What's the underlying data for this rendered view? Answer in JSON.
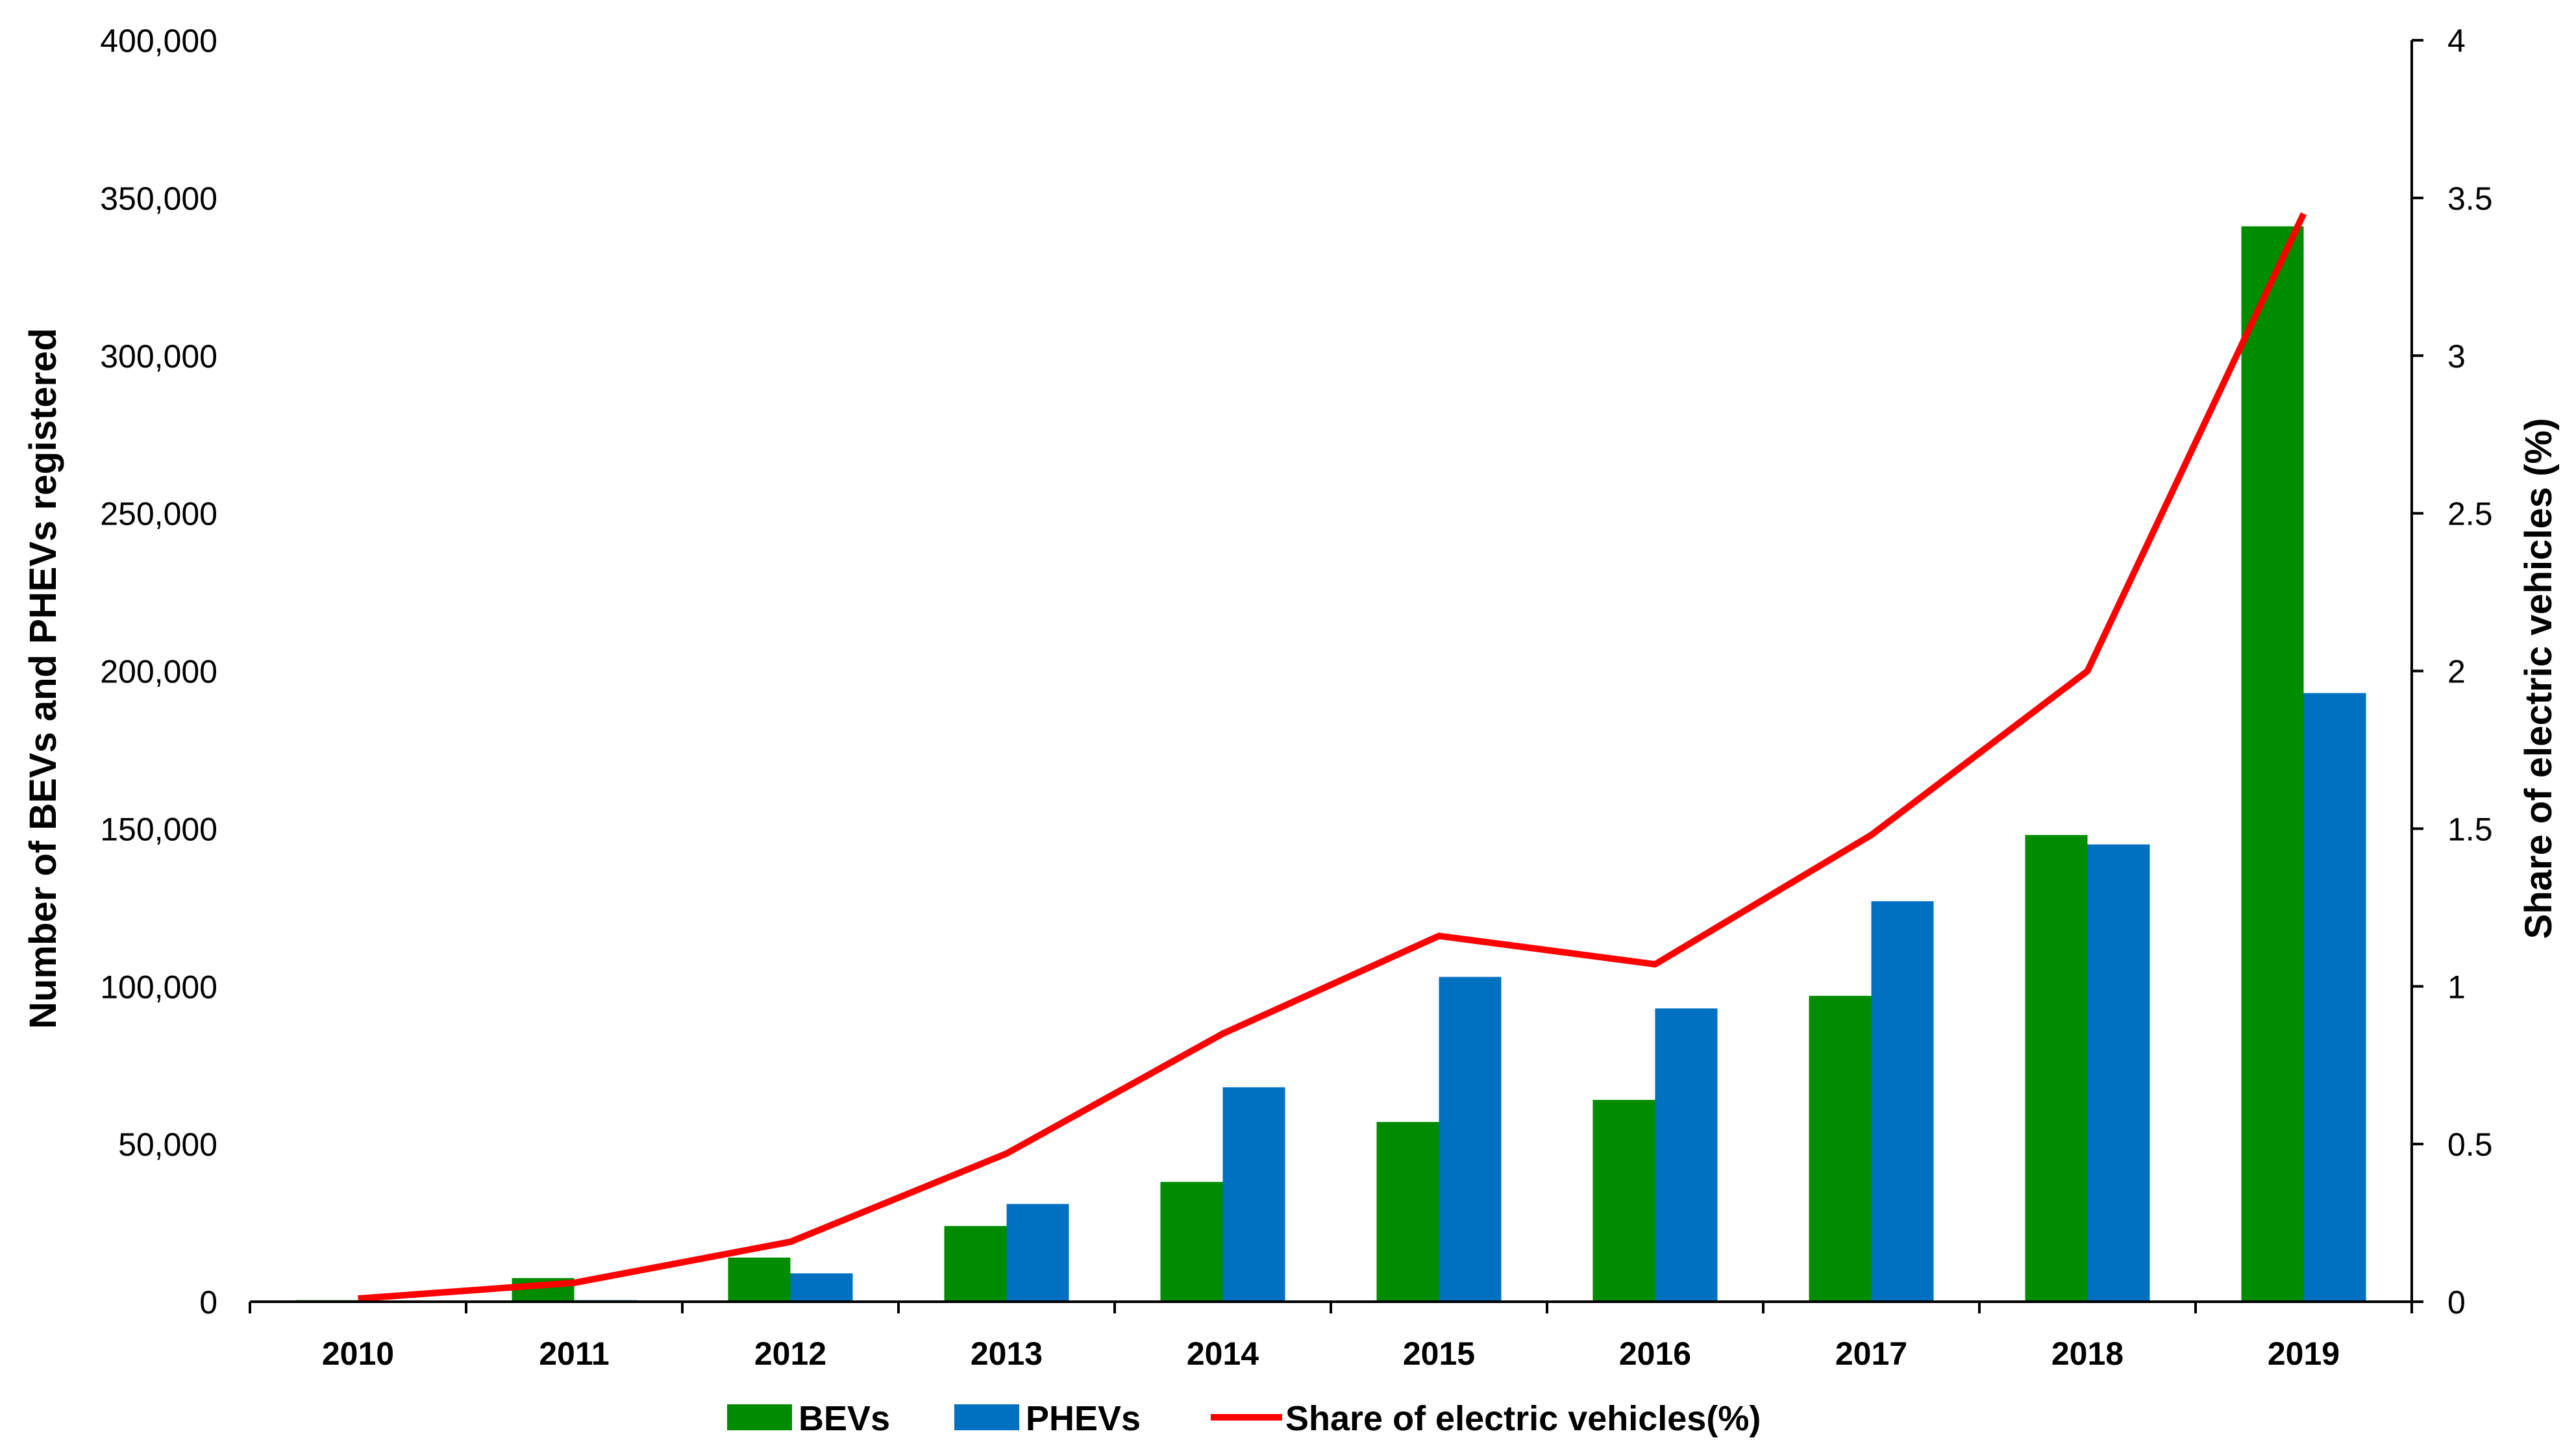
{
  "chart_data": {
    "type": "bar",
    "categories": [
      "2010",
      "2011",
      "2012",
      "2013",
      "2014",
      "2015",
      "2016",
      "2017",
      "2018",
      "2019"
    ],
    "series": [
      {
        "name": "BEVs",
        "type": "bar",
        "axis": "left",
        "color": "#008C00",
        "values": [
          500,
          7500,
          14000,
          24000,
          38000,
          57000,
          64000,
          97000,
          148000,
          341000
        ]
      },
      {
        "name": "PHEVs",
        "type": "bar",
        "axis": "left",
        "color": "#0070C0",
        "values": [
          0,
          500,
          9000,
          31000,
          68000,
          103000,
          93000,
          127000,
          145000,
          193000
        ]
      },
      {
        "name": "Share of electric vehicles(%)",
        "type": "line",
        "axis": "right",
        "color": "#FF0000",
        "values": [
          0.01,
          0.06,
          0.19,
          0.47,
          0.85,
          1.16,
          1.07,
          1.48,
          2.0,
          3.45
        ]
      }
    ],
    "ylabel": "Number of BEVs and PHEVs registered",
    "y2label": "Share of electric vehicles (%)",
    "ylim": [
      0,
      400000
    ],
    "y2lim": [
      0,
      4
    ],
    "yticks": [
      "0",
      "50,000",
      "100,000",
      "150,000",
      "200,000",
      "250,000",
      "300,000",
      "350,000",
      "400,000"
    ],
    "y2ticks": [
      "0",
      "0.5",
      "1",
      "1.5",
      "2",
      "2.5",
      "3",
      "3.5",
      "4"
    ],
    "grid": false,
    "legend_position": "bottom"
  }
}
